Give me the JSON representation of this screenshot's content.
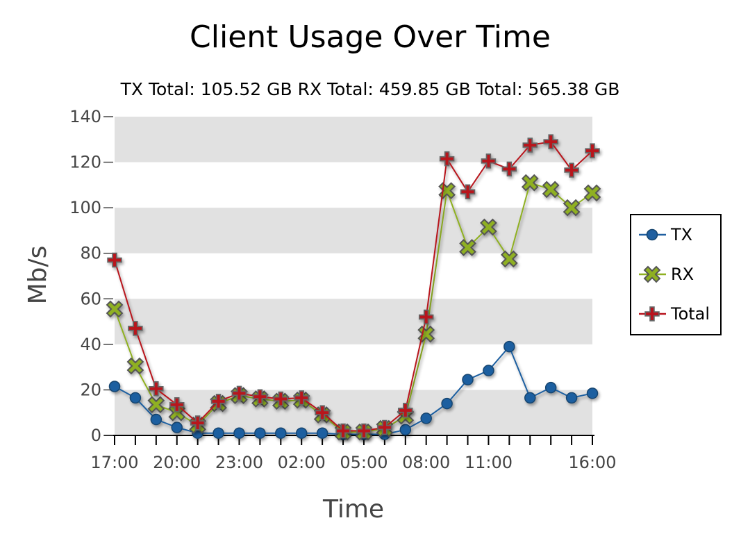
{
  "chart_data": {
    "type": "line",
    "title": "Client Usage Over Time",
    "subtitle": "TX Total: 105.52 GB RX Total: 459.85 GB Total: 565.38 GB",
    "xlabel": "Time",
    "ylabel": "Mb/s",
    "ylim": [
      0,
      140
    ],
    "yticks": [
      0,
      20,
      40,
      60,
      80,
      100,
      120,
      140
    ],
    "x": [
      "17:00",
      "18:00",
      "19:00",
      "20:00",
      "21:00",
      "22:00",
      "23:00",
      "00:00",
      "01:00",
      "02:00",
      "03:00",
      "04:00",
      "05:00",
      "06:00",
      "07:00",
      "08:00",
      "09:00",
      "10:00",
      "11:00",
      "12:00",
      "13:00",
      "14:00",
      "15:00",
      "16:00"
    ],
    "xtick_labels": [
      "17:00",
      "20:00",
      "23:00",
      "02:00",
      "05:00",
      "08:00",
      "11:00",
      "16:00"
    ],
    "grid": "alternating horizontal bands",
    "legend_position": "right",
    "series": [
      {
        "name": "TX",
        "color": "#1f5fa0",
        "marker": "circle",
        "values": [
          21.5,
          16.5,
          7,
          3.5,
          1,
          1,
          1,
          1,
          1,
          1,
          1,
          0.5,
          0.5,
          0.5,
          2.5,
          7.5,
          14,
          24.5,
          28.5,
          39,
          16.5,
          21,
          16.5,
          18.5
        ]
      },
      {
        "name": "RX",
        "color": "#8fb021",
        "marker": "x",
        "values": [
          55.5,
          30.5,
          13.5,
          10,
          4.5,
          14,
          17.5,
          16,
          15,
          15.5,
          9,
          1.5,
          1.5,
          3,
          8.5,
          44.5,
          107.5,
          82.5,
          91.5,
          77.5,
          111,
          108,
          100,
          106.5
        ]
      },
      {
        "name": "Total",
        "color": "#b8141e",
        "marker": "plus",
        "values": [
          77,
          47,
          20.5,
          13.5,
          5.5,
          15,
          18.5,
          17,
          16,
          16.5,
          10,
          2,
          2,
          3.5,
          11,
          52,
          121.5,
          107,
          120.5,
          117,
          127.5,
          129,
          116.5,
          125
        ]
      }
    ]
  }
}
